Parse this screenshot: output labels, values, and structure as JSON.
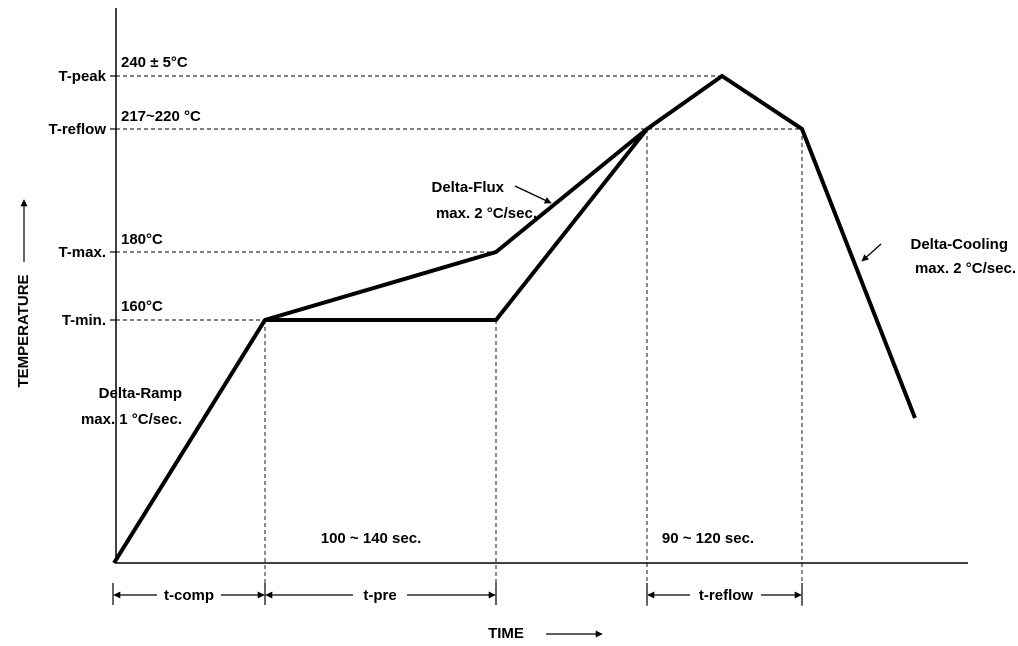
{
  "axes": {
    "x_label": "TIME",
    "y_label": "TEMPERATURE"
  },
  "levels": {
    "t_peak": {
      "label": "T-peak",
      "value": "240 ± 5°C"
    },
    "t_reflow": {
      "label": "T-reflow",
      "value": "217~220 °C"
    },
    "t_max": {
      "label": "T-max.",
      "value": "180°C"
    },
    "t_min": {
      "label": "T-min.",
      "value": "160°C"
    }
  },
  "annotations": {
    "delta_ramp": {
      "title": "Delta-Ramp",
      "rate": "max. 1 °C/sec."
    },
    "delta_flux": {
      "title": "Delta-Flux",
      "rate": "max. 2 °C/sec."
    },
    "delta_cooling": {
      "title": "Delta-Cooling",
      "rate": "max. 2 °C/sec."
    }
  },
  "durations": {
    "preheat": "100 ~ 140 sec.",
    "reflow": "90 ~ 120 sec."
  },
  "intervals": {
    "t_comp": "t-comp",
    "t_pre": "t-pre",
    "t_reflow": "t-reflow"
  }
}
